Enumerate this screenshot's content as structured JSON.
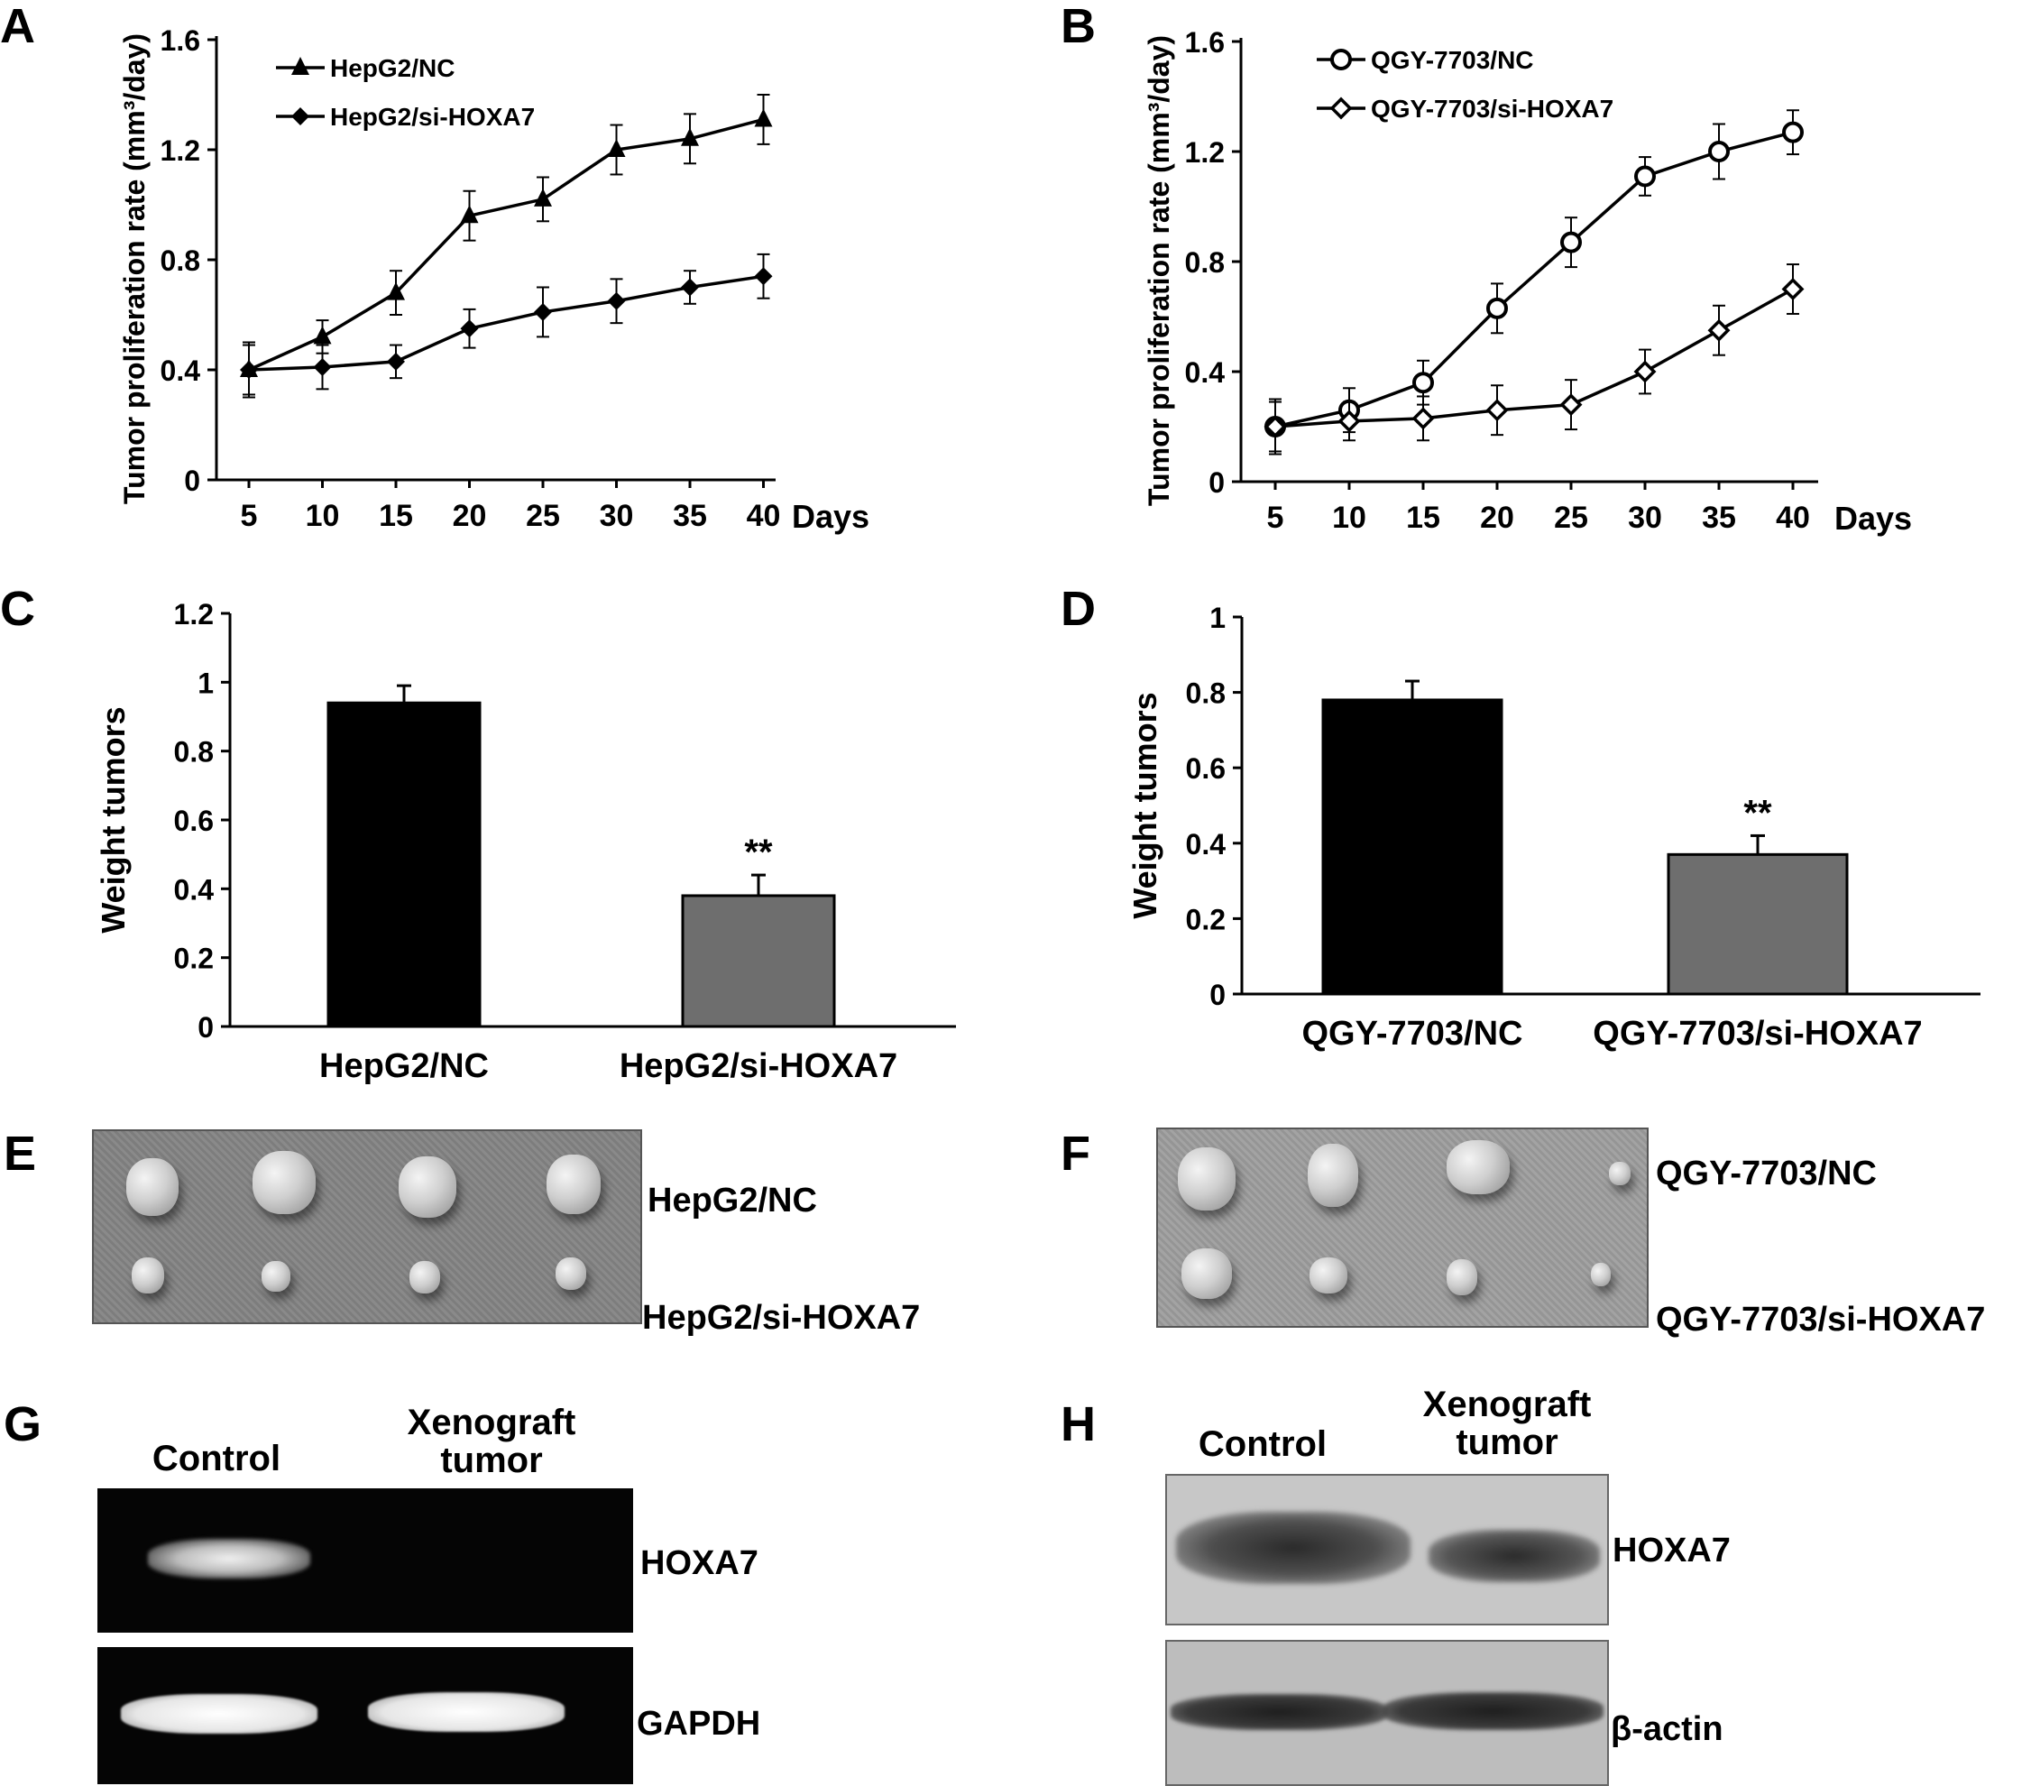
{
  "panels": {
    "A": "A",
    "B": "B",
    "C": "C",
    "D": "D",
    "E": "E",
    "F": "F",
    "G": "G",
    "H": "H"
  },
  "chart_data": [
    {
      "id": "A",
      "type": "line",
      "ylabel": "Tumor proliferation rate (mm³/day)",
      "xlabel": "Days",
      "x": [
        5,
        10,
        15,
        20,
        25,
        30,
        35,
        40
      ],
      "yticks": [
        "0",
        "0.4",
        "0.8",
        "1.2",
        "1.6"
      ],
      "ylim": [
        0,
        1.6
      ],
      "series": [
        {
          "name": "HepG2/NC",
          "marker": "triangle",
          "values": [
            0.4,
            0.52,
            0.68,
            0.96,
            1.02,
            1.2,
            1.24,
            1.31
          ],
          "errors": [
            0.09,
            0.06,
            0.08,
            0.09,
            0.08,
            0.09,
            0.09,
            0.09
          ]
        },
        {
          "name": "HepG2/si-HOXA7",
          "marker": "diamond",
          "values": [
            0.4,
            0.41,
            0.43,
            0.55,
            0.61,
            0.65,
            0.7,
            0.74
          ],
          "errors": [
            0.1,
            0.08,
            0.06,
            0.07,
            0.09,
            0.08,
            0.06,
            0.08
          ]
        }
      ],
      "legend": "top-left"
    },
    {
      "id": "B",
      "type": "line",
      "ylabel": "Tumor proliferation rate (mm³/day)",
      "xlabel": "Days",
      "x": [
        5,
        10,
        15,
        20,
        25,
        30,
        35,
        40
      ],
      "yticks": [
        "0",
        "0.4",
        "0.8",
        "1.2",
        "1.6"
      ],
      "ylim": [
        0,
        1.6
      ],
      "series": [
        {
          "name": "QGY-7703/NC",
          "marker": "circle-open",
          "values": [
            0.2,
            0.26,
            0.36,
            0.63,
            0.87,
            1.11,
            1.2,
            1.27
          ],
          "errors": [
            0.09,
            0.08,
            0.08,
            0.09,
            0.09,
            0.07,
            0.1,
            0.08
          ]
        },
        {
          "name": "QGY-7703/si-HOXA7",
          "marker": "diamond-open",
          "values": [
            0.2,
            0.22,
            0.23,
            0.26,
            0.28,
            0.4,
            0.55,
            0.7
          ],
          "errors": [
            0.1,
            0.07,
            0.08,
            0.09,
            0.09,
            0.08,
            0.09,
            0.09
          ]
        }
      ],
      "legend": "top-left"
    },
    {
      "id": "C",
      "type": "bar",
      "ylabel": "Weight tumors",
      "categories": [
        "HepG2/NC",
        "HepG2/si-HOXA7"
      ],
      "values": [
        0.94,
        0.38
      ],
      "errors": [
        0.05,
        0.06
      ],
      "colors": [
        "#000000",
        "#6e6e6e"
      ],
      "annotations": [
        "",
        "**"
      ],
      "yticks": [
        "0",
        "0.2",
        "0.4",
        "0.6",
        "0.8",
        "1",
        "1.2"
      ],
      "ylim": [
        0,
        1.2
      ]
    },
    {
      "id": "D",
      "type": "bar",
      "ylabel": "Weight tumors",
      "categories": [
        "QGY-7703/NC",
        "QGY-7703/si-HOXA7"
      ],
      "values": [
        0.78,
        0.37
      ],
      "errors": [
        0.05,
        0.05
      ],
      "colors": [
        "#000000",
        "#6e6e6e"
      ],
      "annotations": [
        "",
        "**"
      ],
      "yticks": [
        "0",
        "0.2",
        "0.4",
        "0.6",
        "0.8",
        "1"
      ],
      "ylim": [
        0,
        1
      ]
    }
  ],
  "photos": {
    "E": {
      "row1": "HepG2/NC",
      "row2": "HepG2/si-HOXA7"
    },
    "F": {
      "row1": "QGY-7703/NC",
      "row2": "QGY-7703/si-HOXA7"
    }
  },
  "gel_G": {
    "lane1": "Control",
    "lane2": "Xenograft tumor",
    "band1": "HOXA7",
    "band2": "GAPDH"
  },
  "blot_H": {
    "lane1": "Control",
    "lane2": "Xenograft tumor",
    "band1": "HOXA7",
    "band2": "β-actin"
  }
}
